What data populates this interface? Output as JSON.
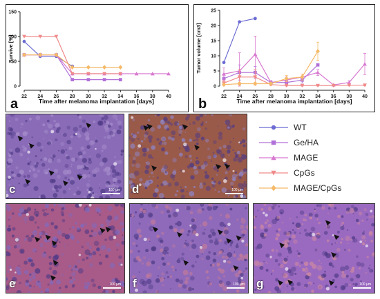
{
  "chart_data": [
    {
      "type": "line",
      "panel_letter": "a",
      "xlabel": "Time after melanoma implantation [days]",
      "ylabel": "Survive [%]",
      "x": [
        22,
        24,
        26,
        28,
        30,
        32,
        34,
        36,
        38,
        40
      ],
      "xticks": [
        "22",
        "24",
        "26",
        "28",
        "30",
        "32",
        "34",
        "36",
        "38",
        "40"
      ],
      "yticks": [
        "0",
        "50",
        "100",
        "150"
      ],
      "ylim": [
        0,
        150
      ],
      "series": [
        {
          "name": "WT",
          "color": "#6b6bd3",
          "marker": "circle",
          "x": [
            22,
            24,
            26,
            28
          ],
          "y": [
            90,
            60,
            60,
            40
          ]
        },
        {
          "name": "Ge/HA",
          "color": "#b070d8",
          "marker": "square",
          "x": [
            22,
            24,
            26,
            28,
            30,
            32,
            34
          ],
          "y": [
            63,
            63,
            63,
            13,
            13,
            13,
            13
          ]
        },
        {
          "name": "MAGE",
          "color": "#d878d0",
          "marker": "triangle-up",
          "x": [
            22,
            24,
            26,
            28,
            30,
            32,
            34,
            36,
            38,
            40
          ],
          "y": [
            63,
            63,
            63,
            25,
            25,
            25,
            25,
            25,
            25,
            25
          ]
        },
        {
          "name": "CpGs",
          "color": "#f08a8a",
          "marker": "triangle-down",
          "x": [
            22,
            24,
            26,
            28,
            30,
            32,
            34
          ],
          "y": [
            100,
            100,
            100,
            25,
            25,
            25,
            25
          ]
        },
        {
          "name": "MAGE/CpGs",
          "color": "#f5b968",
          "marker": "diamond",
          "x": [
            22,
            24,
            26,
            28,
            30,
            32,
            34
          ],
          "y": [
            63,
            63,
            63,
            38,
            38,
            38,
            38
          ]
        }
      ]
    },
    {
      "type": "line",
      "panel_letter": "b",
      "xlabel": "Time after melanoma implantation [days]",
      "ylabel": "Tumor volume [cm3]",
      "x": [
        22,
        24,
        26,
        28,
        30,
        32,
        34,
        36,
        38,
        40
      ],
      "xticks": [
        "22",
        "24",
        "26",
        "28",
        "30",
        "32",
        "34",
        "36",
        "38",
        "40"
      ],
      "yticks": [
        "0",
        "5",
        "10",
        "15",
        "20",
        "25"
      ],
      "ylim": [
        0,
        25
      ],
      "series": [
        {
          "name": "WT",
          "color": "#6b6bd3",
          "marker": "circle",
          "x": [
            22,
            24,
            26
          ],
          "y": [
            7.8,
            21.2,
            22.3
          ],
          "err": [
            0,
            0,
            0
          ]
        },
        {
          "name": "Ge/HA",
          "color": "#b070d8",
          "marker": "square",
          "x": [
            22,
            24,
            26,
            28,
            30,
            32,
            34
          ],
          "y": [
            2.5,
            4.5,
            4.5,
            1.2,
            1.2,
            2.0,
            7.0
          ],
          "err": [
            1.5,
            2.5,
            2.0,
            0.6,
            0.6,
            1.0,
            0
          ]
        },
        {
          "name": "MAGE",
          "color": "#d878d0",
          "marker": "triangle-up",
          "x": [
            22,
            24,
            26,
            28,
            30,
            32,
            34,
            36,
            38,
            40
          ],
          "y": [
            4.0,
            5.0,
            10.5,
            1.2,
            2.0,
            3.0,
            4.5,
            0.4,
            1.2,
            7.3
          ],
          "err": [
            2.0,
            6.0,
            6.0,
            0.6,
            1.0,
            1.0,
            1.0,
            0.2,
            0.6,
            3.5
          ]
        },
        {
          "name": "CpGs",
          "color": "#f08a8a",
          "marker": "triangle-down",
          "x": [
            22,
            24,
            26,
            28,
            30,
            32,
            34,
            36,
            38,
            40
          ],
          "y": [
            1.0,
            3.0,
            3.0,
            0.5,
            0.2,
            0.2,
            0.2,
            0.2,
            0.3,
            0.3
          ],
          "err": [
            0.8,
            2.5,
            2.5,
            0.3,
            0.2,
            0.2,
            0.2,
            0.2,
            0.2,
            0.2
          ]
        },
        {
          "name": "MAGE/CpGs",
          "color": "#f5b968",
          "marker": "diamond",
          "x": [
            22,
            24,
            26,
            28,
            30,
            32,
            34
          ],
          "y": [
            0.5,
            0.8,
            0.8,
            0.8,
            2.5,
            3.0,
            11.5
          ],
          "err": [
            0.3,
            0.5,
            0.5,
            0.5,
            1.0,
            1.0,
            3.0
          ]
        }
      ]
    }
  ],
  "legend": [
    {
      "label": "WT",
      "color": "#6b6bd3",
      "marker": "circle"
    },
    {
      "label": "Ge/HA",
      "color": "#b070d8",
      "marker": "square"
    },
    {
      "label": "MAGE",
      "color": "#d878d0",
      "marker": "triangle-up"
    },
    {
      "label": "CpGs",
      "color": "#f08a8a",
      "marker": "triangle-down"
    },
    {
      "label": "MAGE/CpGs",
      "color": "#f5b968",
      "marker": "diamond"
    }
  ],
  "micrographs": [
    {
      "letter": "c",
      "scale_label": "100 µm",
      "base": "#8a6bb8",
      "tint": "#a88fcc"
    },
    {
      "letter": "d",
      "scale_label": "100 µm",
      "base": "#9a5a4a",
      "tint": "#8f86c8"
    },
    {
      "letter": "e",
      "scale_label": "100 µm",
      "base": "#a85a88",
      "tint": "#7f6bc0"
    },
    {
      "letter": "f",
      "scale_label": "100 µm",
      "base": "#8f6aba",
      "tint": "#c27a9a"
    },
    {
      "letter": "g",
      "scale_label": "100 µm",
      "base": "#9a6ac0",
      "tint": "#d08aa0"
    }
  ]
}
